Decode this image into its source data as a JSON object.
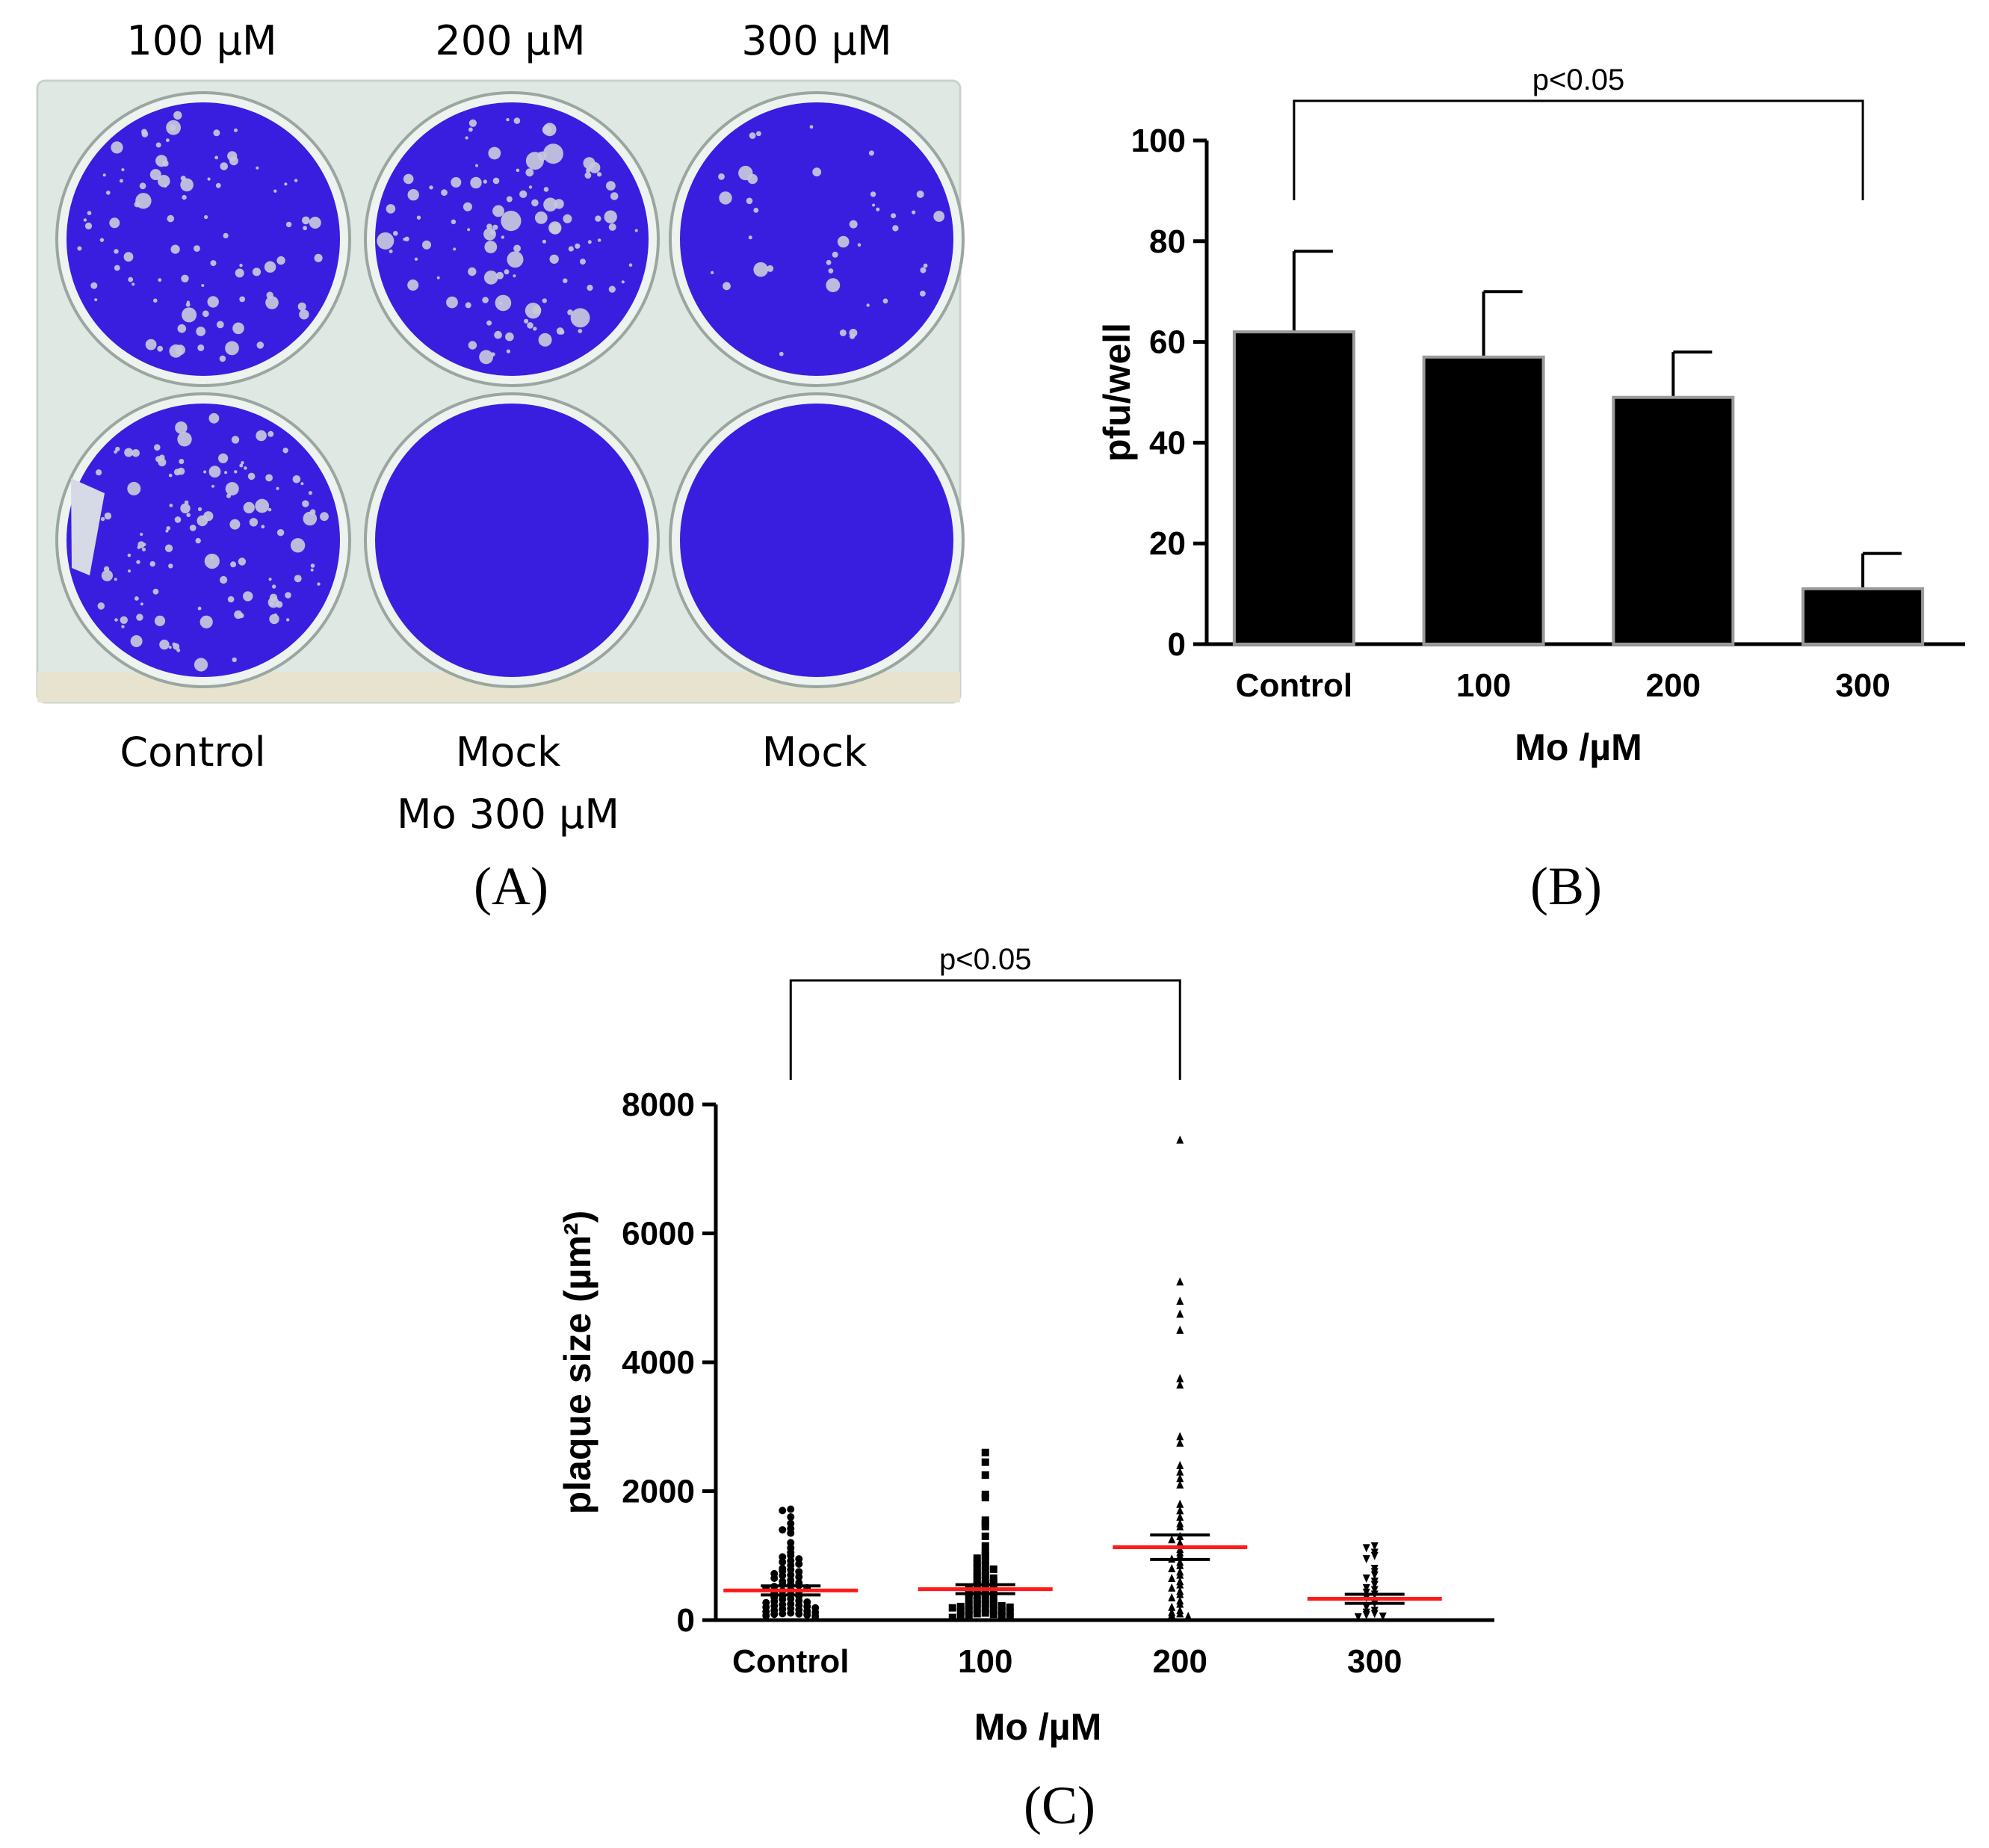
{
  "panel_a": {
    "column_labels": [
      "100 µM",
      "200 µM",
      "300 µM"
    ],
    "row_labels": [
      "Control",
      "Mock",
      "Mock"
    ],
    "row_labels_line2": [
      "",
      "Mo 300 µM",
      ""
    ],
    "letter": "(A)",
    "well_color": "#3a1ee0",
    "plate_color": "#dfe8e2"
  },
  "panel_b": {
    "letter": "(B)"
  },
  "panel_c": {
    "letter": "(C)"
  },
  "chart_data": [
    {
      "id": "B",
      "type": "bar",
      "categories": [
        "Control",
        "100",
        "200",
        "300"
      ],
      "values": [
        62,
        57,
        49,
        11
      ],
      "errors": [
        16,
        13,
        9,
        7
      ],
      "xlabel": "Mo /µM",
      "ylabel": "pfu/well",
      "ylim": [
        0,
        100
      ],
      "yticks": [
        "0",
        "20",
        "40",
        "60",
        "80",
        "100"
      ],
      "significance": {
        "from": "Control",
        "to": "300",
        "label": "p<0.05"
      },
      "bar_color": "#000000"
    },
    {
      "id": "C",
      "type": "scatter",
      "categories": [
        "Control",
        "100",
        "200",
        "300"
      ],
      "xlabel": "Mo /µM",
      "ylabel": "plaque size (µm²)",
      "ylim": [
        0,
        8000
      ],
      "yticks": [
        "0",
        "2000",
        "4000",
        "6000",
        "8000"
      ],
      "means": [
        460,
        480,
        1130,
        330
      ],
      "sems": [
        70,
        70,
        190,
        70
      ],
      "mean_color": "#ff1a1a",
      "markers": [
        "circle",
        "square",
        "triangle-up",
        "triangle-down"
      ],
      "significance": {
        "from": "Control",
        "to": "200",
        "label": "p<0.05"
      },
      "points": [
        [
          1720,
          1700,
          1600,
          1500,
          1420,
          1400,
          1350,
          1200,
          1120,
          1050,
          1000,
          980,
          950,
          920,
          900,
          870,
          850,
          800,
          780,
          760,
          750,
          720,
          700,
          690,
          670,
          650,
          620,
          600,
          580,
          560,
          550,
          540,
          520,
          500,
          490,
          470,
          450,
          440,
          420,
          400,
          380,
          370,
          350,
          330,
          320,
          300,
          290,
          280,
          270,
          250,
          240,
          230,
          220,
          210,
          200,
          190,
          180,
          170,
          160,
          150,
          140,
          130,
          120,
          110,
          100,
          95,
          90,
          80,
          70,
          60
        ],
        [
          2600,
          2450,
          2250,
          1950,
          1900,
          1550,
          1500,
          1450,
          1300,
          1150,
          1050,
          1000,
          960,
          920,
          880,
          850,
          820,
          790,
          760,
          730,
          700,
          680,
          650,
          620,
          600,
          580,
          560,
          540,
          520,
          500,
          480,
          460,
          440,
          420,
          400,
          380,
          360,
          340,
          320,
          300,
          280,
          260,
          250,
          240,
          230,
          220,
          210,
          200,
          190,
          180,
          170,
          160,
          150,
          140,
          130,
          120,
          110,
          100,
          90,
          80,
          70,
          60,
          50,
          40
        ],
        [
          7450,
          5250,
          4950,
          4750,
          4500,
          3750,
          3650,
          2850,
          2750,
          2400,
          2300,
          2200,
          2100,
          1800,
          1700,
          1600,
          1500,
          1450,
          1300,
          1250,
          1200,
          1100,
          1050,
          1000,
          950,
          900,
          850,
          800,
          750,
          700,
          650,
          600,
          550,
          500,
          450,
          400,
          350,
          300,
          250,
          200,
          150,
          120,
          100,
          80,
          60
        ],
        [
          1150,
          1120,
          1050,
          1000,
          950,
          800,
          750,
          700,
          650,
          600,
          550,
          500,
          470,
          430,
          400,
          350,
          300,
          260,
          200,
          150,
          120,
          100,
          80,
          60,
          50
        ]
      ]
    }
  ]
}
